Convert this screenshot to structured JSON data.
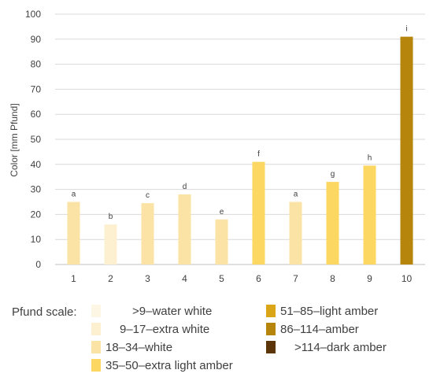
{
  "chart_data": {
    "type": "bar",
    "categories": [
      "1",
      "2",
      "3",
      "4",
      "5",
      "6",
      "7",
      "8",
      "9",
      "10"
    ],
    "values": [
      25,
      16,
      24.5,
      28,
      18,
      41,
      25,
      33,
      39.5,
      91
    ],
    "data_labels": [
      "a",
      "b",
      "c",
      "d",
      "e",
      "f",
      "a",
      "g",
      "h",
      "i"
    ],
    "bar_colors": [
      "#fbe3a6",
      "#fdf0d0",
      "#fbe3a6",
      "#fbe3a6",
      "#fbe3a6",
      "#fcd761",
      "#fbe3a6",
      "#fcd761",
      "#fcd761",
      "#b5860b"
    ],
    "ylabel": "Color [mm Pfund]",
    "xlabel": "",
    "ylim": [
      0,
      100
    ],
    "yticks": [
      0,
      10,
      20,
      30,
      40,
      50,
      60,
      70,
      80,
      90,
      100
    ],
    "grid": true,
    "gridline_color": "#d9d9d9",
    "legend": {
      "title": "Pfund scale:",
      "placement": "bottom",
      "items": [
        {
          "label": ">9–water white",
          "color": "#fef6e4"
        },
        {
          "label": "9–17–extra white",
          "color": "#fdf0d0"
        },
        {
          "label": "18–34–white",
          "color": "#fbe3a6"
        },
        {
          "label": "35–50–extra light amber",
          "color": "#fcd761"
        },
        {
          "label": "51–85–light amber",
          "color": "#daa517"
        },
        {
          "label": "86–114–amber",
          "color": "#b5860b"
        },
        {
          "label": ">114–dark amber",
          "color": "#5c3608"
        }
      ]
    }
  }
}
